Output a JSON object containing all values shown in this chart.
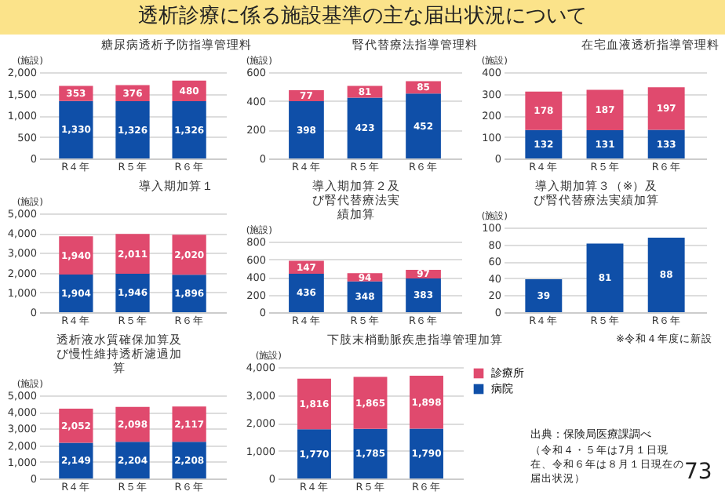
{
  "chart_data": [
    {
      "type": "other",
      "title": "透析診療に係る施設基準の主な届出状況について",
      "annotations": [
        "出典：保険局医療課調べ",
        "（令和４・５年は7月１日現在、令和６年は８月１日現在の届出状況）",
        "73"
      ]
    },
    {
      "type": "bar",
      "title": "糖尿病透析予防指導管理料",
      "ylabel": "(施設)",
      "categories": [
        "R４年",
        "R５年",
        "R６年"
      ],
      "stacked": true,
      "grid": "y",
      "ylim": [
        0,
        2000
      ],
      "yticks": [
        0,
        {
          "value": 500,
          "label": "500"
        },
        {
          "value": 1000,
          "label": "1,000"
        },
        {
          "value": 1500,
          "label": "1,500"
        },
        {
          "value": 2000,
          "label": "2,000"
        }
      ],
      "series": [
        {
          "color": "#0f4fa8",
          "values": [
            1330,
            1326,
            1326
          ],
          "value_labels": [
            "1,330",
            "1,326",
            "1,326"
          ]
        },
        {
          "color": "#e04a6e",
          "values": [
            353,
            376,
            480
          ],
          "value_labels": [
            "353",
            "376",
            "480"
          ]
        }
      ]
    },
    {
      "type": "bar",
      "title": "腎代替療法指導管理料",
      "ylabel": "(施設)",
      "categories": [
        "R４年",
        "R５年",
        "R６年"
      ],
      "stacked": true,
      "data_labels": true,
      "grid": "y",
      "ylim": [
        0,
        600
      ],
      "yticks": [
        0,
        200,
        400,
        600
      ],
      "series": [
        {
          "color": "#0f4fa8",
          "values": [
            398,
            423,
            452
          ]
        },
        {
          "color": "#e04a6e",
          "values": [
            77,
            81,
            85
          ]
        }
      ]
    },
    {
      "type": "bar",
      "title": "在宅血液透析指導管理料",
      "ylabel": "(施設)",
      "categories": [
        "R４年",
        "R５年",
        "R６年"
      ],
      "stacked": true,
      "data_labels": true,
      "grid": "y",
      "ylim": [
        0,
        400
      ],
      "yticks": [
        0,
        100,
        200,
        300,
        400
      ],
      "series": [
        {
          "color": "#0f4fa8",
          "values": [
            132,
            131,
            133
          ]
        },
        {
          "color": "#e04a6e",
          "values": [
            178,
            187,
            197
          ]
        }
      ]
    },
    {
      "type": "bar",
      "title": "導入期加算１",
      "ylabel": "(施設)",
      "categories": [
        "R４年",
        "R５年",
        "R６年"
      ],
      "stacked": true,
      "grid": "y",
      "ylim": [
        0,
        5000
      ],
      "yticks": [
        0,
        {
          "value": 1000,
          "label": "1,000"
        },
        {
          "value": 2000,
          "label": "2,000"
        },
        {
          "value": 3000,
          "label": "3,000"
        },
        {
          "value": 4000,
          "label": "4,000"
        },
        {
          "value": 5000,
          "label": "5,000"
        }
      ],
      "series": [
        {
          "color": "#0f4fa8",
          "values": [
            1904,
            1946,
            1896
          ],
          "value_labels": [
            "1,904",
            "1,946",
            "1,896"
          ]
        },
        {
          "color": "#e04a6e",
          "values": [
            1940,
            2011,
            2020
          ],
          "value_labels": [
            "1,940",
            "2,011",
            "2,020"
          ]
        }
      ]
    },
    {
      "type": "bar",
      "title": "導入期加算２及び腎代替療法実績加算",
      "ylabel": "(施設)",
      "categories": [
        "R４年",
        "R５年",
        "R６年"
      ],
      "stacked": true,
      "data_labels": true,
      "grid": "y",
      "ylim": [
        0,
        800
      ],
      "yticks": [
        0,
        200,
        400,
        600,
        800
      ],
      "series": [
        {
          "color": "#0f4fa8",
          "values": [
            436,
            348,
            383
          ]
        },
        {
          "color": "#e04a6e",
          "values": [
            147,
            94,
            97
          ]
        }
      ]
    },
    {
      "type": "bar",
      "title": "導入期加算３（※）及び腎代替療法実績加算",
      "ylabel": "(施設)",
      "categories": [
        "R４年",
        "R５年",
        "R６年"
      ],
      "stacked": true,
      "data_labels": true,
      "grid": "y",
      "ylim": [
        0,
        100
      ],
      "yticks": [
        0,
        20,
        40,
        60,
        80,
        100
      ],
      "annotations": [
        "※令和４年度に新設"
      ],
      "series": [
        {
          "color": "#0f4fa8",
          "values": [
            39,
            81,
            88
          ]
        }
      ]
    },
    {
      "type": "bar",
      "title": "透析液水質確保加算及び慢性維持透析濾過加算",
      "ylabel": "(施設)",
      "categories": [
        "R４年",
        "R５年",
        "R６年"
      ],
      "stacked": true,
      "grid": "y",
      "ylim": [
        0,
        5000
      ],
      "yticks": [
        0,
        {
          "value": 1000,
          "label": "1,000"
        },
        {
          "value": 2000,
          "label": "2,000"
        },
        {
          "value": 3000,
          "label": "3,000"
        },
        {
          "value": 4000,
          "label": "4,000"
        },
        {
          "value": 5000,
          "label": "5,000"
        }
      ],
      "series": [
        {
          "color": "#0f4fa8",
          "values": [
            2149,
            2204,
            2208
          ],
          "value_labels": [
            "2,149",
            "2,204",
            "2,208"
          ]
        },
        {
          "color": "#e04a6e",
          "values": [
            2052,
            2098,
            2117
          ],
          "value_labels": [
            "2,052",
            "2,098",
            "2,117"
          ]
        }
      ]
    },
    {
      "type": "bar",
      "title": "下肢末梢動脈疾患指導管理加算",
      "ylabel": "(施設)",
      "categories": [
        "R４年",
        "R５年",
        "R６年"
      ],
      "stacked": true,
      "grid": "y",
      "legend": "right",
      "ylim": [
        0,
        4000
      ],
      "yticks": [
        0,
        {
          "value": 1000,
          "label": "1,000"
        },
        {
          "value": 2000,
          "label": "2,000"
        },
        {
          "value": 3000,
          "label": "3,000"
        },
        {
          "value": 4000,
          "label": "4,000"
        }
      ],
      "series": [
        {
          "name": "病院",
          "color": "#0f4fa8",
          "values": [
            1770,
            1785,
            1790
          ],
          "value_labels": [
            "1,770",
            "1,785",
            "1,790"
          ]
        },
        {
          "name": "診療所",
          "color": "#e04a6e",
          "values": [
            1816,
            1865,
            1898
          ],
          "value_labels": [
            "1,816",
            "1,865",
            "1,898"
          ]
        }
      ]
    }
  ]
}
